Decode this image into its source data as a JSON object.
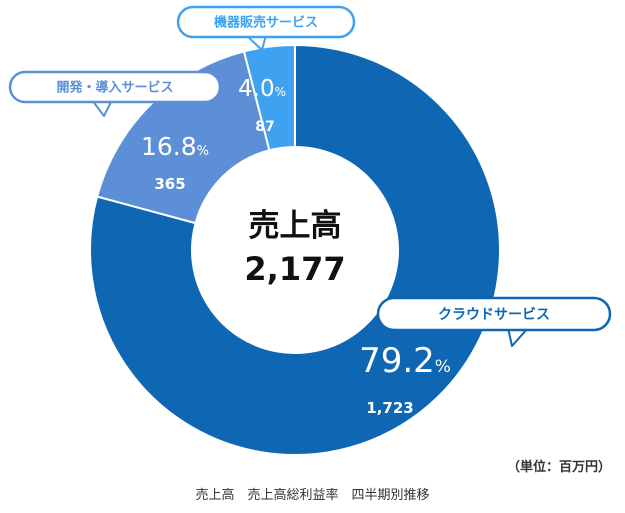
{
  "chart_data": {
    "type": "pie",
    "variant": "donut",
    "center_title": "売上高",
    "center_value": "2,177",
    "unit_note": "（単位：百万円）",
    "caption": "売上高　売上高総利益率　四半期別推移",
    "slices": [
      {
        "label": "クラウドサービス",
        "percent": 79.2,
        "percent_text": "79.2",
        "value": 1723,
        "value_text": "1,723",
        "color": "#0f67b3"
      },
      {
        "label": "開発・導入サービス",
        "percent": 16.8,
        "percent_text": "16.8",
        "value": 365,
        "value_text": "365",
        "color": "#5d8fd6"
      },
      {
        "label": "機器販売サービス",
        "percent": 4.0,
        "percent_text": "4.0",
        "value": 87,
        "value_text": "87",
        "color": "#3ea2f0"
      }
    ],
    "percent_symbol": "%",
    "legend": "callouts"
  }
}
